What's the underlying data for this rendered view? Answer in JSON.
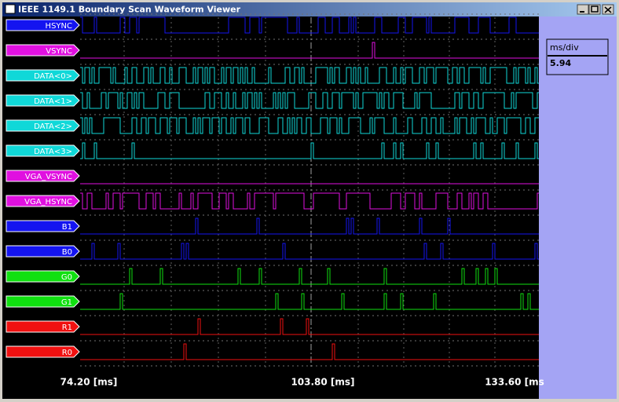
{
  "window": {
    "title": "IEEE 1149.1 Boundary Scan Waveform Viewer"
  },
  "signals": [
    {
      "name": "HSYNC",
      "color": "#1414f0"
    },
    {
      "name": "VSYNC",
      "color": "#e010e0"
    },
    {
      "name": "DATA<0>",
      "color": "#10d8d8"
    },
    {
      "name": "DATA<1>",
      "color": "#10d8d8"
    },
    {
      "name": "DATA<2>",
      "color": "#10d8d8"
    },
    {
      "name": "DATA<3>",
      "color": "#10d8d8"
    },
    {
      "name": "VGA_VSYNC",
      "color": "#e010e0"
    },
    {
      "name": "VGA_HSYNC",
      "color": "#e010e0"
    },
    {
      "name": "B1",
      "color": "#1414f0"
    },
    {
      "name": "B0",
      "color": "#1414f0"
    },
    {
      "name": "G0",
      "color": "#10e010"
    },
    {
      "name": "G1",
      "color": "#10e010"
    },
    {
      "name": "R1",
      "color": "#f01010"
    },
    {
      "name": "R0",
      "color": "#f01010"
    }
  ],
  "scale": {
    "label": "ms/div",
    "value": "5.94"
  },
  "time_axis": {
    "labels": [
      "74.20 [ms]",
      "103.80 [ms]",
      "133.60 [ms"
    ]
  }
}
